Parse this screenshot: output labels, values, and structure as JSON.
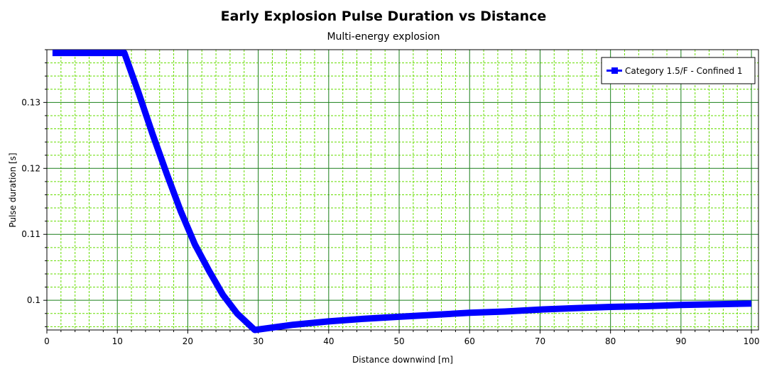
{
  "chart_data": {
    "type": "line",
    "title": "Early Explosion Pulse Duration vs Distance",
    "subtitle": "Multi-energy explosion",
    "xlabel": "Distance downwind [m]",
    "ylabel": "Pulse duration [s]",
    "xlim": [
      0,
      101
    ],
    "ylim": [
      0.0955,
      0.138
    ],
    "x_ticks": [
      0,
      10,
      20,
      30,
      40,
      50,
      60,
      70,
      80,
      90,
      100
    ],
    "x_tick_labels": [
      "0",
      "10",
      "20",
      "30",
      "40",
      "50",
      "60",
      "70",
      "80",
      "90",
      "100"
    ],
    "y_ticks": [
      0.1,
      0.11,
      0.12,
      0.13
    ],
    "y_tick_labels": [
      "0.1",
      "0.11",
      "0.12",
      "0.13"
    ],
    "grid": true,
    "legend_position": "top-right",
    "colors": {
      "series": "#0000ff",
      "major_grid": "#1a7f1a",
      "minor_grid": "#66dd00"
    },
    "series": [
      {
        "name": "Category 1.5/F - Confined 1",
        "x": [
          0.8,
          11,
          13,
          15,
          17,
          19,
          21,
          23,
          25,
          27,
          29.5,
          35,
          40,
          45,
          50,
          55,
          60,
          65,
          70,
          75,
          80,
          85,
          90,
          95,
          100
        ],
        "y": [
          0.1375,
          0.1375,
          0.1315,
          0.1252,
          0.1192,
          0.1135,
          0.1085,
          0.1045,
          0.1008,
          0.098,
          0.0955,
          0.0963,
          0.0968,
          0.0972,
          0.0975,
          0.0978,
          0.0981,
          0.0983,
          0.0986,
          0.0988,
          0.099,
          0.0991,
          0.0993,
          0.0994,
          0.0995
        ]
      }
    ]
  }
}
